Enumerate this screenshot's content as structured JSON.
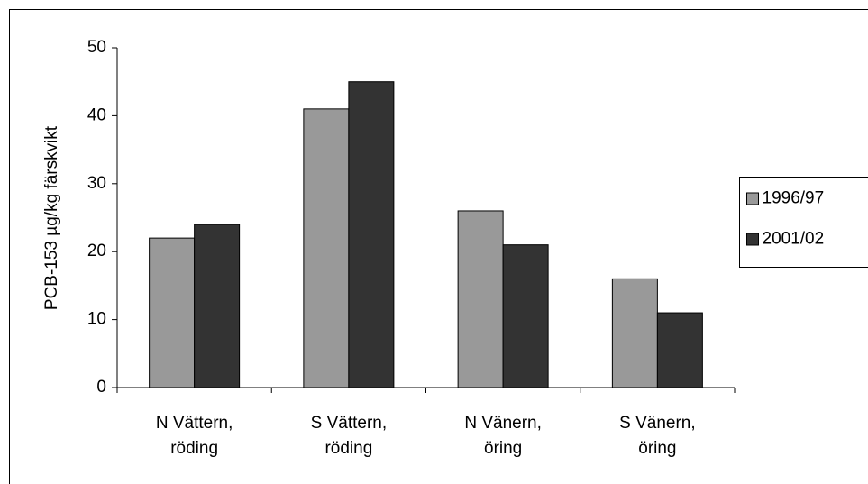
{
  "chart_data": {
    "type": "bar",
    "y_label": "PCB-153 µg/kg färskvikt",
    "categories": [
      "N Vättern,\nröding",
      "S Vättern,\nröding",
      "N Vänern,\nöring",
      "S Vänern,\nöring"
    ],
    "series": [
      {
        "name": "1996/97",
        "color": "#999999",
        "values": [
          22,
          41,
          26,
          16
        ]
      },
      {
        "name": "2001/02",
        "color": "#333333",
        "values": [
          24,
          45,
          21,
          11
        ]
      }
    ],
    "ylim": [
      0,
      50
    ],
    "yticks": [
      0,
      10,
      20,
      30,
      40,
      50
    ],
    "legend": "right"
  }
}
